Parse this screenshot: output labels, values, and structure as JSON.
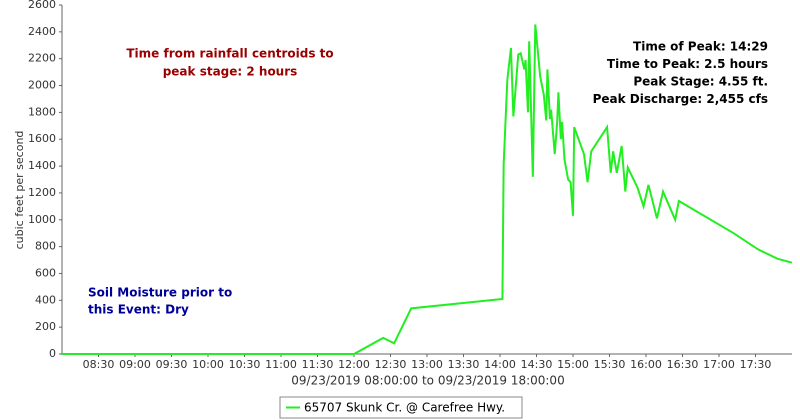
{
  "chart_data": {
    "type": "line",
    "x_label": "09/23/2019 08:00:00 to 09/23/2019 18:00:00",
    "y_label": "cubic feet per second",
    "xlim": [
      "08:00",
      "18:00"
    ],
    "xticks": [
      "08:30",
      "09:00",
      "09:30",
      "10:00",
      "10:30",
      "11:00",
      "11:30",
      "12:00",
      "12:30",
      "13:00",
      "13:30",
      "14:00",
      "14:30",
      "15:00",
      "15:30",
      "16:00",
      "16:30",
      "17:00",
      "17:30"
    ],
    "ylim": [
      0,
      2600
    ],
    "yticks": [
      0,
      200,
      400,
      600,
      800,
      1000,
      1200,
      1400,
      1600,
      1800,
      2000,
      2200,
      2400,
      2600
    ],
    "grid": false,
    "legend": "bottom",
    "x": [
      "08:00",
      "12:00",
      "12:24",
      "12:33",
      "12:47",
      "14:02",
      "14:03",
      "14:06",
      "14:09",
      "14:11",
      "14:15",
      "14:17",
      "14:20",
      "14:21",
      "14:23",
      "14:24",
      "14:27",
      "14:29",
      "14:33",
      "14:36",
      "14:38",
      "14:39",
      "14:41",
      "14:42",
      "14:45",
      "14:47",
      "14:48",
      "14:50",
      "14:51",
      "14:53",
      "14:56",
      "14:58",
      "15:00",
      "15:01",
      "15:09",
      "15:12",
      "15:15",
      "15:28",
      "15:31",
      "15:33",
      "15:36",
      "15:40",
      "15:43",
      "15:45",
      "15:53",
      "15:58",
      "16:02",
      "16:09",
      "16:14",
      "16:24",
      "16:27",
      "17:12",
      "17:32",
      "17:48",
      "18:00"
    ],
    "series": [
      {
        "name": "65707 Skunk Cr. @ Carefree Hwy.",
        "color": "#22ee22",
        "values": [
          0,
          0,
          120,
          80,
          340,
          410,
          1410,
          2040,
          2280,
          1770,
          2230,
          2240,
          2120,
          2190,
          1800,
          2330,
          1320,
          2455,
          2070,
          1930,
          1740,
          2120,
          1750,
          1820,
          1490,
          1730,
          1950,
          1600,
          1730,
          1450,
          1300,
          1280,
          1030,
          1690,
          1490,
          1280,
          1510,
          1690,
          1350,
          1510,
          1350,
          1550,
          1210,
          1390,
          1240,
          1100,
          1260,
          1010,
          1210,
          1000,
          1140,
          900,
          780,
          710,
          680
        ]
      }
    ],
    "annotations": [
      {
        "lines": [
          "Time from rainfall centroids to",
          "peak stage: 2 hours"
        ],
        "color": "#990000"
      },
      {
        "lines": [
          "Time of Peak: 14:29",
          "Time to Peak: 2.5 hours",
          "Peak Stage: 4.55 ft.",
          "Peak Discharge: 2,455 cfs"
        ],
        "color": "#000000"
      },
      {
        "lines": [
          "Soil Moisture prior to",
          "this Event: Dry"
        ],
        "color": "#000099"
      }
    ]
  }
}
